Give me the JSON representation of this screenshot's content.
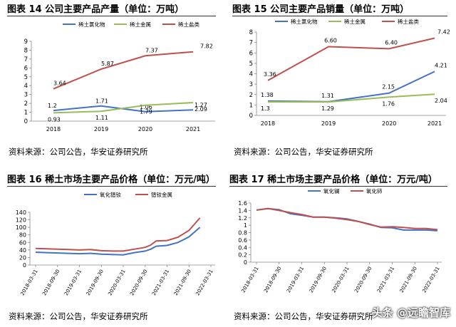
{
  "source_note": "资料来源：公司公告，华安证券研究所",
  "watermark": "头条 @远瞻智库",
  "panels": [
    {
      "title": "图表 14 公司主要产品产量（单位：万吨）"
    },
    {
      "title": "图表 15 公司主要产品销量（单位：万吨）"
    },
    {
      "title": "图表 16 稀土市场主要产品价格（单位：万元/吨）"
    },
    {
      "title": "图表 17 稀土市场主要产品价格（单位：万元/吨）"
    }
  ],
  "chart_data": [
    {
      "type": "line",
      "x": [
        "2018",
        "2019",
        "2020",
        "2021"
      ],
      "ylim": [
        0,
        9
      ],
      "yticks": [
        "0",
        "1",
        "2",
        "3",
        "4",
        "5",
        "6",
        "7",
        "8",
        "9"
      ],
      "series": [
        {
          "name": "稀土氯化物",
          "color": "#4472c4",
          "values": [
            1.2,
            1.71,
            1.06,
            1.27
          ],
          "labels": [
            "1.2",
            "1.71",
            "1.06",
            "1.27"
          ]
        },
        {
          "name": "稀土金属",
          "color": "#9bbb59",
          "values": [
            0.93,
            1.11,
            1.79,
            2.09
          ],
          "labels": [
            "0.93",
            "1.11",
            "1.79",
            "2.09"
          ]
        },
        {
          "name": "稀土盐类",
          "color": "#c0504d",
          "values": [
            3.64,
            5.87,
            7.37,
            7.82
          ],
          "labels": [
            "3.64",
            "5.87",
            "7.37",
            "7.82"
          ]
        }
      ]
    },
    {
      "type": "line",
      "x": [
        "2018",
        "2019",
        "2020",
        "2021"
      ],
      "ylim": [
        0,
        8
      ],
      "yticks": [
        "0",
        "1",
        "2",
        "3",
        "4",
        "5",
        "6",
        "7",
        "8"
      ],
      "series": [
        {
          "name": "稀土氯化物",
          "color": "#4472c4",
          "values": [
            1.38,
            1.31,
            2.15,
            4.21
          ],
          "labels": [
            "1.38",
            "1.31",
            "2.15",
            "4.21"
          ]
        },
        {
          "name": "稀土金属",
          "color": "#9bbb59",
          "values": [
            1.3,
            1.29,
            1.76,
            2.04
          ],
          "labels": [
            "1.3",
            "1.29",
            "1.76",
            "2.04"
          ]
        },
        {
          "name": "稀土盐类",
          "color": "#c0504d",
          "values": [
            3.36,
            6.6,
            6.4,
            7.42
          ],
          "labels": [
            "3.36",
            "6.60",
            "6.40",
            "7.42"
          ]
        }
      ]
    },
    {
      "type": "line",
      "x": [
        "2018-03-31",
        "2018-09-30",
        "2019-03-31",
        "2019-09-30",
        "2020-03-31",
        "2020-09-30",
        "2021-03-31",
        "2021-09-30",
        "2022-03-31"
      ],
      "ylim": [
        0,
        140
      ],
      "yticks": [
        "0",
        "20",
        "40",
        "60",
        "80",
        "100",
        "120",
        "140"
      ],
      "series": [
        {
          "name": "氧化镨钕",
          "color": "#4472c4",
          "points": [
            [
              0,
              34
            ],
            [
              0.5,
              33
            ],
            [
              1,
              32
            ],
            [
              1.5,
              31
            ],
            [
              2,
              30
            ],
            [
              2.5,
              31
            ],
            [
              3,
              29
            ],
            [
              3.5,
              28
            ],
            [
              4,
              27
            ],
            [
              4.5,
              33
            ],
            [
              5,
              37
            ],
            [
              5.25,
              42
            ],
            [
              5.5,
              50
            ],
            [
              6,
              52
            ],
            [
              6.5,
              60
            ],
            [
              7,
              75
            ],
            [
              7.5,
              100
            ]
          ]
        },
        {
          "name": "镨钕金属",
          "color": "#c0504d",
          "points": [
            [
              0,
              44
            ],
            [
              0.5,
              43
            ],
            [
              1,
              42
            ],
            [
              1.5,
              41
            ],
            [
              2,
              40
            ],
            [
              2.5,
              41
            ],
            [
              3,
              38
            ],
            [
              3.5,
              37
            ],
            [
              4,
              37
            ],
            [
              4.5,
              42
            ],
            [
              5,
              47
            ],
            [
              5.25,
              53
            ],
            [
              5.5,
              64
            ],
            [
              6,
              65
            ],
            [
              6.5,
              74
            ],
            [
              7,
              92
            ],
            [
              7.5,
              125
            ]
          ]
        }
      ]
    },
    {
      "type": "line",
      "x": [
        "2018-03-31",
        "2018-09-30",
        "2019-03-31",
        "2019-09-30",
        "2020-03-31",
        "2020-09-30",
        "2021-03-31",
        "2021-09-30",
        "2022-03-31"
      ],
      "ylim": [
        0,
        1.6
      ],
      "yticks": [
        "0",
        "0.2",
        "0.4",
        "0.6",
        "0.8",
        "1",
        "1.2",
        "1.4",
        "1.6"
      ],
      "series": [
        {
          "name": "氧化镧",
          "color": "#4472c4",
          "points": [
            [
              0,
              1.41
            ],
            [
              0.5,
              1.45
            ],
            [
              1,
              1.42
            ],
            [
              1.5,
              1.31
            ],
            [
              2,
              1.27
            ],
            [
              2.5,
              1.22
            ],
            [
              3,
              1.22
            ],
            [
              3.5,
              1.2
            ],
            [
              4,
              1.17
            ],
            [
              4.5,
              1.1
            ],
            [
              5,
              1.03
            ],
            [
              5.5,
              0.94
            ],
            [
              6,
              0.93
            ],
            [
              6.5,
              0.87
            ],
            [
              7,
              0.87
            ],
            [
              7.5,
              0.87
            ],
            [
              8,
              0.85
            ]
          ]
        },
        {
          "name": "氧化铈",
          "color": "#c0504d",
          "points": [
            [
              0,
              1.41
            ],
            [
              0.5,
              1.45
            ],
            [
              1,
              1.4
            ],
            [
              1.5,
              1.34
            ],
            [
              2,
              1.29
            ],
            [
              2.5,
              1.22
            ],
            [
              3,
              1.22
            ],
            [
              3.5,
              1.19
            ],
            [
              4,
              1.15
            ],
            [
              4.5,
              1.1
            ],
            [
              5,
              1.02
            ],
            [
              5.5,
              0.95
            ],
            [
              6,
              0.96
            ],
            [
              6.5,
              0.94
            ],
            [
              7,
              0.91
            ],
            [
              7.5,
              0.91
            ],
            [
              8,
              0.88
            ]
          ]
        }
      ]
    }
  ]
}
